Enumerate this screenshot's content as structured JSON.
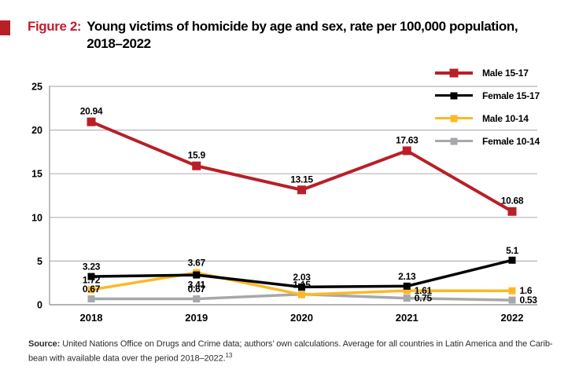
{
  "header": {
    "figure_label": "Figure 2:",
    "title_lines": [
      "Young victims of homicide by age and sex, rate per 100,000 population,",
      "2018–2022"
    ],
    "accent_color": "#c01e2e"
  },
  "chart_data": {
    "type": "line",
    "title": "Young victims of homicide by age and sex, rate per 100,000 population, 2018–2022",
    "categories": [
      "2018",
      "2019",
      "2020",
      "2021",
      "2022"
    ],
    "series": [
      {
        "name": "Male 15-17",
        "color": "#b91f26",
        "line_width": 4,
        "marker_size": 11,
        "values": [
          20.94,
          15.9,
          13.15,
          17.63,
          10.68
        ],
        "labels": [
          "20.94",
          "15.9",
          "13.15",
          "17.63",
          "10.68"
        ],
        "label_pos": [
          "above",
          "above",
          "above",
          "above",
          "above"
        ]
      },
      {
        "name": "Female 15-17",
        "color": "#000000",
        "line_width": 3.5,
        "marker_size": 9,
        "values": [
          3.23,
          3.41,
          2.03,
          2.13,
          5.1
        ],
        "labels": [
          "3.23",
          "3.41",
          "2.03",
          "2.13",
          "5.1"
        ],
        "label_pos": [
          "above",
          "below",
          "above",
          "above",
          "above"
        ]
      },
      {
        "name": "Male 10-14",
        "color": "#fdb827",
        "line_width": 3.5,
        "marker_size": 9,
        "values": [
          1.72,
          3.67,
          1.15,
          1.61,
          1.6
        ],
        "labels": [
          "1.72",
          "3.67",
          "1.15",
          "1.61",
          "1.6"
        ],
        "label_pos": [
          "above",
          "above",
          "above",
          "right",
          "right"
        ]
      },
      {
        "name": "Female 10-14",
        "color": "#a6a8ab",
        "line_width": 3.5,
        "marker_size": 9,
        "values": [
          0.67,
          0.67,
          1.2,
          0.75,
          0.53
        ],
        "labels": [
          "0.67",
          "0.67",
          "",
          "0.75",
          "0.53"
        ],
        "label_pos": [
          "above",
          "above",
          "none",
          "right",
          "right"
        ]
      }
    ],
    "ylim": [
      0,
      25
    ],
    "yticks": [
      0,
      5,
      10,
      15,
      20,
      25
    ],
    "grid": true,
    "gridline_color": "#b3b5b7",
    "axis_color": "#a0a2a5",
    "legend_position": "top-right",
    "xlabel": "",
    "ylabel": ""
  },
  "footer": {
    "source_label": "Source:",
    "line1_rest": " United Nations Office on Drugs and Crime data; authors’ own calculations. Average for all countries in Latin America and the Carib-",
    "line2": "bean with available data over the period 2018–2022.",
    "footnote_mark": "13"
  }
}
